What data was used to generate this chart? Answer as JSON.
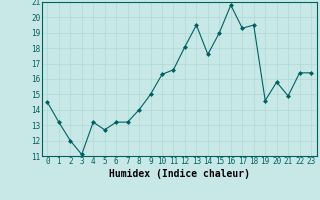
{
  "x": [
    0,
    1,
    2,
    3,
    4,
    5,
    6,
    7,
    8,
    9,
    10,
    11,
    12,
    13,
    14,
    15,
    16,
    17,
    18,
    19,
    20,
    21,
    22,
    23
  ],
  "y": [
    14.5,
    13.2,
    12.0,
    11.1,
    13.2,
    12.7,
    13.2,
    13.2,
    14.0,
    15.0,
    16.3,
    16.6,
    18.1,
    19.5,
    17.6,
    19.0,
    20.8,
    19.3,
    19.5,
    14.6,
    15.8,
    14.9,
    16.4,
    16.4
  ],
  "line_color": "#006060",
  "marker": "D",
  "marker_size": 2,
  "bg_color": "#c8e8e8",
  "grid_color": "#b0d8d8",
  "xlabel": "Humidex (Indice chaleur)",
  "ylim": [
    11,
    21
  ],
  "xlim": [
    -0.5,
    23.5
  ],
  "yticks": [
    11,
    12,
    13,
    14,
    15,
    16,
    17,
    18,
    19,
    20,
    21
  ],
  "xticks": [
    0,
    1,
    2,
    3,
    4,
    5,
    6,
    7,
    8,
    9,
    10,
    11,
    12,
    13,
    14,
    15,
    16,
    17,
    18,
    19,
    20,
    21,
    22,
    23
  ],
  "tick_fontsize": 5.5,
  "xlabel_fontsize": 7
}
